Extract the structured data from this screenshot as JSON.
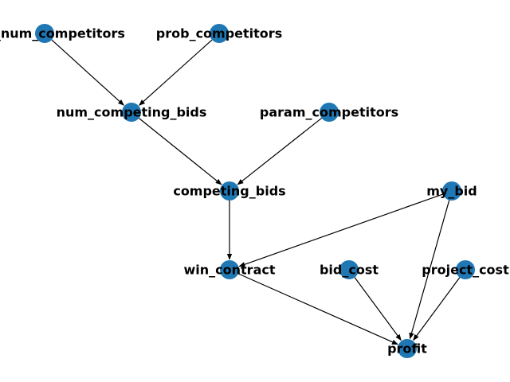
{
  "colors": {
    "node": "#1f77b4",
    "edge": "#000000",
    "label": "#000000",
    "background": "#ffffff"
  },
  "nodes": [
    {
      "id": "max_num_competitors",
      "label": "max_num_competitors"
    },
    {
      "id": "prob_competitors",
      "label": "prob_competitors"
    },
    {
      "id": "num_competing_bids",
      "label": "num_competing_bids"
    },
    {
      "id": "param_competitors",
      "label": "param_competitors"
    },
    {
      "id": "competing_bids",
      "label": "competing_bids"
    },
    {
      "id": "my_bid",
      "label": "my_bid"
    },
    {
      "id": "win_contract",
      "label": "win_contract"
    },
    {
      "id": "bid_cost",
      "label": "bid_cost"
    },
    {
      "id": "project_cost",
      "label": "project_cost"
    },
    {
      "id": "profit",
      "label": "profit"
    }
  ],
  "edges": [
    {
      "from": "max_num_competitors",
      "to": "num_competing_bids"
    },
    {
      "from": "prob_competitors",
      "to": "num_competing_bids"
    },
    {
      "from": "num_competing_bids",
      "to": "competing_bids"
    },
    {
      "from": "param_competitors",
      "to": "competing_bids"
    },
    {
      "from": "competing_bids",
      "to": "win_contract"
    },
    {
      "from": "my_bid",
      "to": "win_contract"
    },
    {
      "from": "my_bid",
      "to": "profit"
    },
    {
      "from": "win_contract",
      "to": "profit"
    },
    {
      "from": "bid_cost",
      "to": "profit"
    },
    {
      "from": "project_cost",
      "to": "profit"
    }
  ]
}
